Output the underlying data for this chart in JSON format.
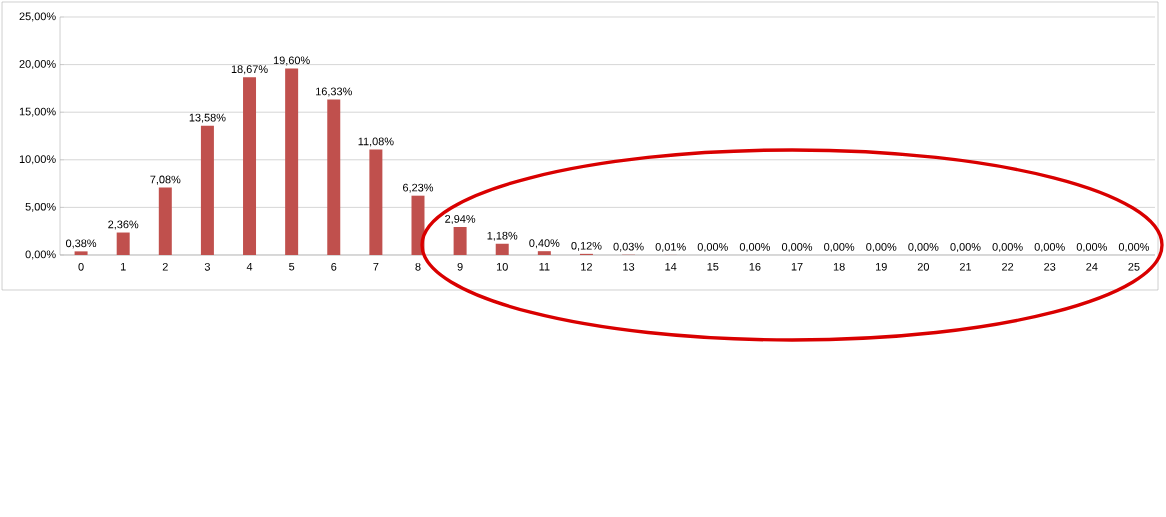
{
  "chart_data": {
    "type": "bar",
    "categories": [
      "0",
      "1",
      "2",
      "3",
      "4",
      "5",
      "6",
      "7",
      "8",
      "9",
      "10",
      "11",
      "12",
      "13",
      "14",
      "15",
      "16",
      "17",
      "18",
      "19",
      "20",
      "21",
      "22",
      "23",
      "24",
      "25"
    ],
    "values": [
      0.38,
      2.36,
      7.08,
      13.58,
      18.67,
      19.6,
      16.33,
      11.08,
      6.23,
      2.94,
      1.18,
      0.4,
      0.12,
      0.03,
      0.01,
      0,
      0,
      0,
      0,
      0,
      0,
      0,
      0,
      0,
      0,
      0
    ],
    "value_labels": [
      "0,38%",
      "2,36%",
      "7,08%",
      "13,58%",
      "18,67%",
      "19,60%",
      "16,33%",
      "11,08%",
      "6,23%",
      "2,94%",
      "1,18%",
      "0,40%",
      "0,12%",
      "0,03%",
      "0,01%",
      "0,00%",
      "0,00%",
      "0,00%",
      "0,00%",
      "0,00%",
      "0,00%",
      "0,00%",
      "0,00%",
      "0,00%",
      "0,00%",
      "0,00%"
    ],
    "color": "#c0504d",
    "ylim": [
      0,
      25
    ],
    "yticks": [
      {
        "value": 0,
        "label": "0,00%"
      },
      {
        "value": 5,
        "label": "5,00%"
      },
      {
        "value": 10,
        "label": "10,00%"
      },
      {
        "value": 15,
        "label": "15,00%"
      },
      {
        "value": 20,
        "label": "20,00%"
      },
      {
        "value": 25,
        "label": "25,00%"
      }
    ],
    "grid": "y"
  }
}
